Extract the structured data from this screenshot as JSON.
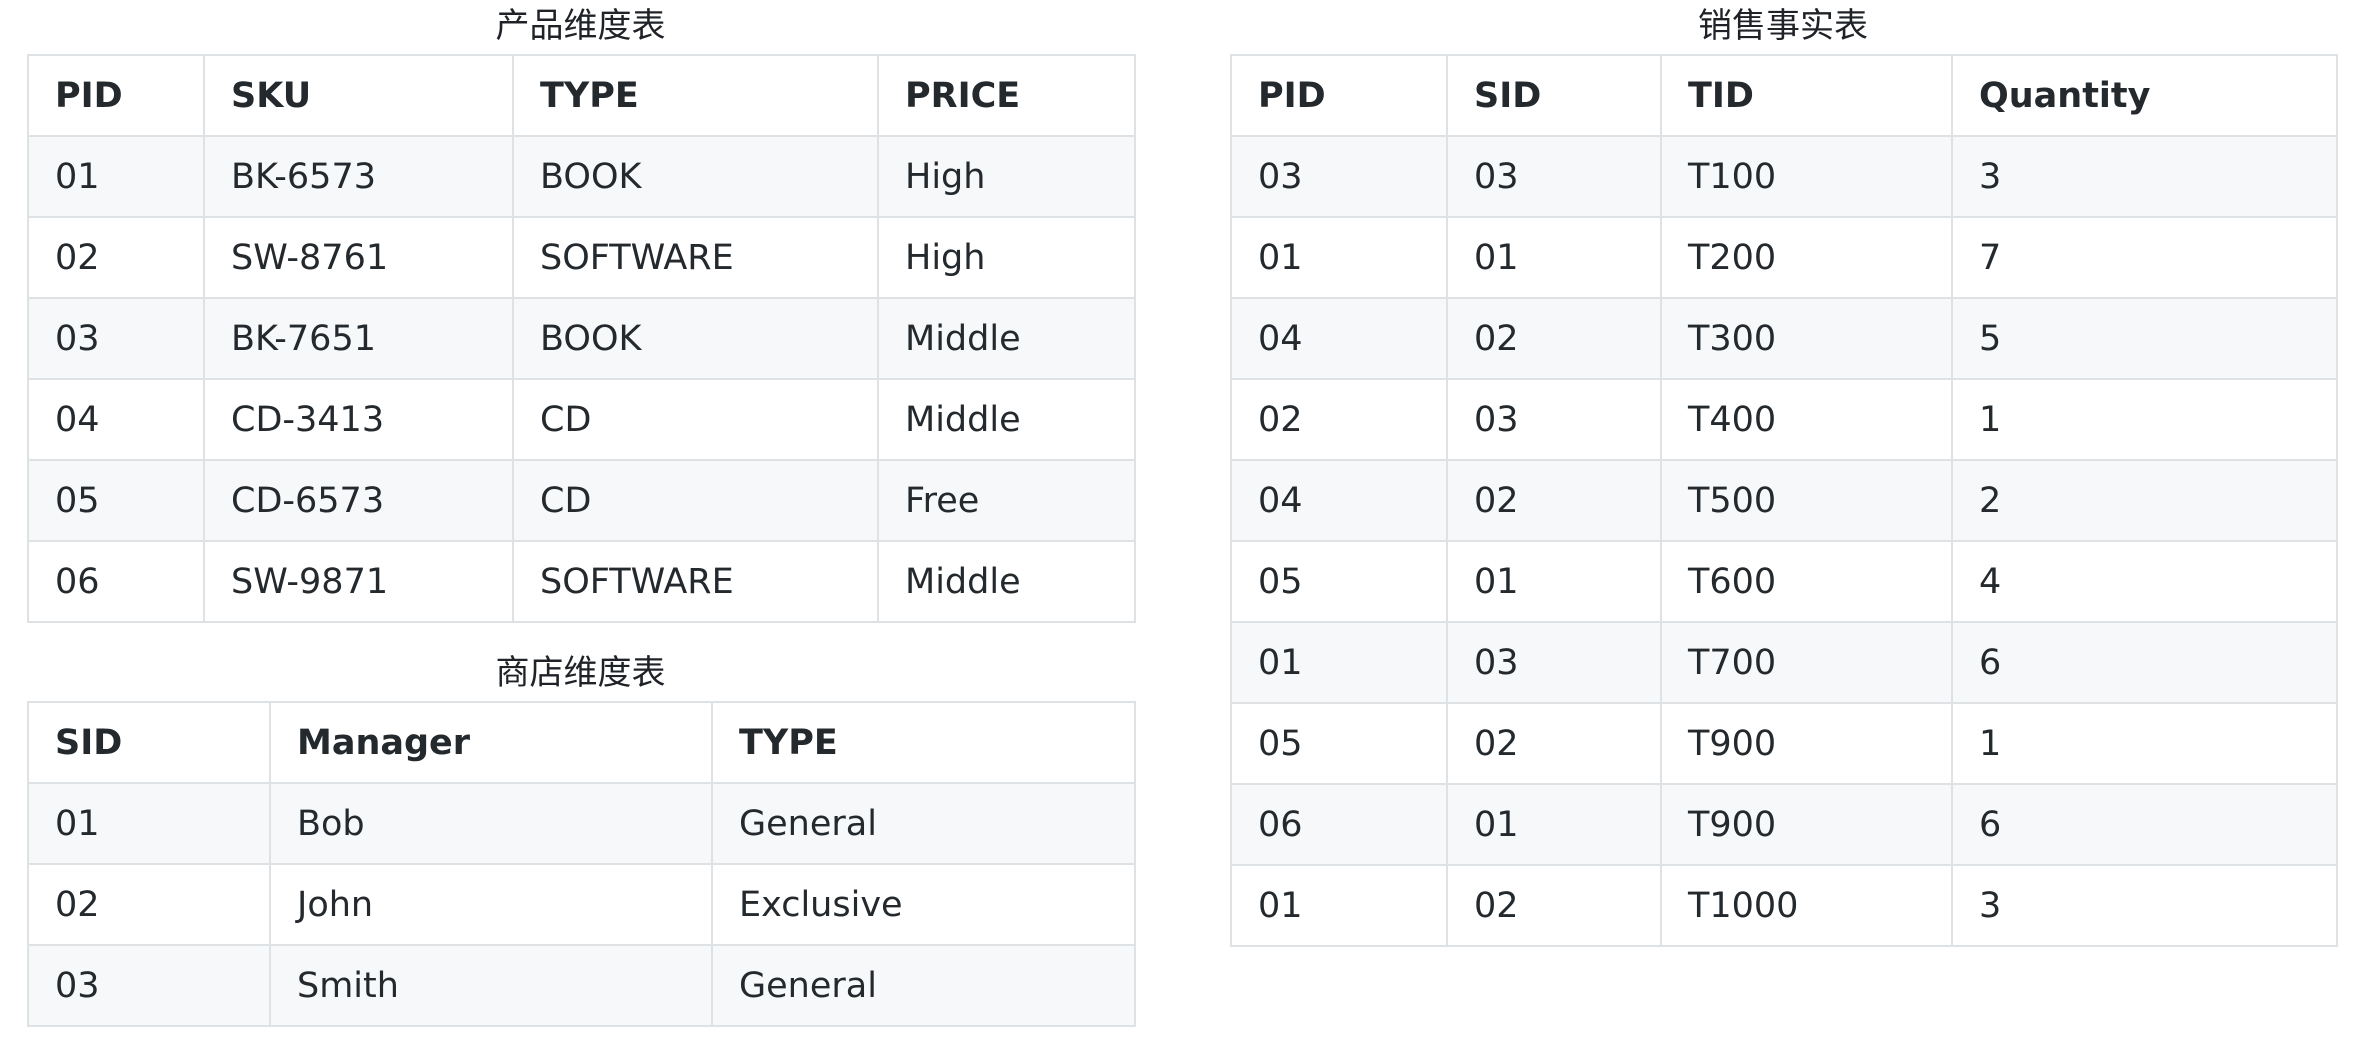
{
  "product_table": {
    "title": "产品维度表",
    "headers": [
      "PID",
      "SKU",
      "TYPE",
      "PRICE"
    ],
    "rows": [
      [
        "01",
        "BK-6573",
        "BOOK",
        "High"
      ],
      [
        "02",
        "SW-8761",
        "SOFTWARE",
        "High"
      ],
      [
        "03",
        "BK-7651",
        "BOOK",
        "Middle"
      ],
      [
        "04",
        "CD-3413",
        "CD",
        "Middle"
      ],
      [
        "05",
        "CD-6573",
        "CD",
        "Free"
      ],
      [
        "06",
        "SW-9871",
        "SOFTWARE",
        "Middle"
      ]
    ]
  },
  "store_table": {
    "title": "商店维度表",
    "headers": [
      "SID",
      "Manager",
      "TYPE"
    ],
    "rows": [
      [
        "01",
        "Bob",
        "General"
      ],
      [
        "02",
        "John",
        "Exclusive"
      ],
      [
        "03",
        "Smith",
        "General"
      ]
    ]
  },
  "sales_table": {
    "title": "销售事实表",
    "headers": [
      "PID",
      "SID",
      "TID",
      "Quantity"
    ],
    "rows": [
      [
        "03",
        "03",
        "T100",
        "3"
      ],
      [
        "01",
        "01",
        "T200",
        "7"
      ],
      [
        "04",
        "02",
        "T300",
        "5"
      ],
      [
        "02",
        "03",
        "T400",
        "1"
      ],
      [
        "04",
        "02",
        "T500",
        "2"
      ],
      [
        "05",
        "01",
        "T600",
        "4"
      ],
      [
        "01",
        "03",
        "T700",
        "6"
      ],
      [
        "05",
        "02",
        "T900",
        "1"
      ],
      [
        "06",
        "01",
        "T900",
        "6"
      ],
      [
        "01",
        "02",
        "T1000",
        "3"
      ]
    ]
  }
}
